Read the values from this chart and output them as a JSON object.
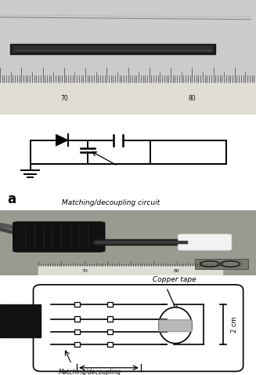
{
  "white": "#ffffff",
  "black": "#000000",
  "gray_bg1": "#c8c8c4",
  "gray_bg2": "#b0b0a8",
  "ruler_bg": "#e8e8e0",
  "coil_dark": "#111111",
  "coil_inner": "#2a2a2a",
  "probe_black": "#111111",
  "probe_dark": "#222222",
  "foam_white": "#eeeeee",
  "pcb_gray": "#909090",
  "label_a": "a",
  "label_matching": "Matching/decoupling circuit",
  "label_copper": "Copper tape",
  "label_2cm": "2 cm",
  "label_matching2": "Matching/decoupling",
  "fig_width": 3.27,
  "fig_height": 4.78
}
